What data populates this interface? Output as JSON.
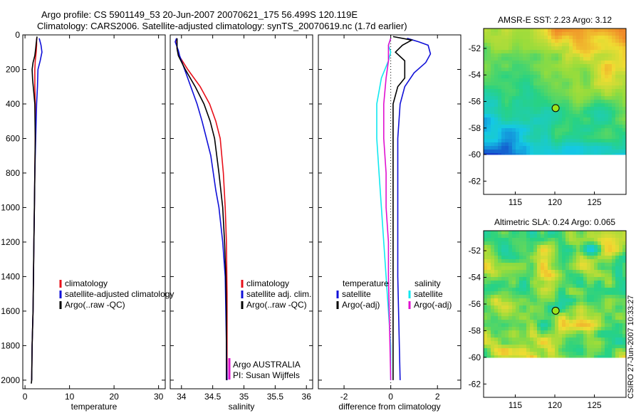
{
  "header": {
    "line1": "Argo profile: CS 5901149_53 20-Jun-2007 20070621_175 56.499S 120.119E",
    "line2": "Climatology: CARS2006. Satellite-adjusted climatology: synTS_20070619.nc (1.7d earlier)"
  },
  "side_stamp": "CSIRO 27-Jun-2007 10:33:27",
  "colors": {
    "red": "#e8101a",
    "blue": "#1010d8",
    "black": "#000000",
    "cyan": "#10e8f0",
    "magenta": "#e010d0",
    "dot": "#9be31c"
  },
  "chart_data": [
    {
      "id": "temperature",
      "type": "line",
      "xlabel": "temperature",
      "ylabel": "",
      "xlim": [
        -0.5,
        31.5
      ],
      "ylim": [
        2050,
        0
      ],
      "xticks": [
        0,
        10,
        20,
        30
      ],
      "yticks": [
        0,
        200,
        400,
        600,
        800,
        1000,
        1200,
        1400,
        1600,
        1800,
        2000
      ],
      "legend": [
        "climatology",
        "satellite-adjusted climatology",
        "Argo(..raw -QC)"
      ],
      "series": [
        {
          "name": "climatology",
          "color": "red",
          "points": [
            [
              2.6,
              20
            ],
            [
              2.6,
              60
            ],
            [
              2.5,
              100
            ],
            [
              2.3,
              150
            ],
            [
              2.2,
              200
            ],
            [
              2.2,
              300
            ],
            [
              2.3,
              400
            ],
            [
              2.3,
              600
            ],
            [
              2.2,
              800
            ],
            [
              2.1,
              1000
            ],
            [
              2.0,
              1200
            ],
            [
              1.9,
              1400
            ],
            [
              1.8,
              1600
            ],
            [
              1.6,
              1800
            ],
            [
              1.5,
              2000
            ]
          ]
        },
        {
          "name": "satellite-adjusted climatology",
          "color": "blue",
          "points": [
            [
              3.2,
              20
            ],
            [
              3.6,
              60
            ],
            [
              3.8,
              100
            ],
            [
              3.4,
              150
            ],
            [
              2.9,
              200
            ],
            [
              2.8,
              300
            ],
            [
              2.6,
              400
            ],
            [
              2.4,
              600
            ],
            [
              2.2,
              800
            ],
            [
              2.1,
              1000
            ],
            [
              2.0,
              1200
            ],
            [
              1.9,
              1400
            ],
            [
              1.8,
              1600
            ],
            [
              1.6,
              1800
            ],
            [
              1.5,
              2000
            ]
          ]
        },
        {
          "name": "Argo(..raw -QC)",
          "color": "black",
          "points": [
            [
              2.7,
              10
            ],
            [
              2.5,
              50
            ],
            [
              2.4,
              80
            ],
            [
              2.2,
              120
            ],
            [
              1.8,
              160
            ],
            [
              1.6,
              200
            ],
            [
              1.7,
              260
            ],
            [
              2.0,
              340
            ],
            [
              2.2,
              400
            ],
            [
              2.3,
              600
            ],
            [
              2.2,
              800
            ],
            [
              2.1,
              1000
            ],
            [
              2.0,
              1200
            ],
            [
              1.9,
              1400
            ],
            [
              1.8,
              1600
            ],
            [
              1.6,
              1800
            ],
            [
              1.5,
              2000
            ],
            [
              1.4,
              2020
            ]
          ]
        }
      ]
    },
    {
      "id": "salinity",
      "type": "line",
      "xlabel": "salinity",
      "ylabel": "",
      "xlim": [
        33.82,
        36.1
      ],
      "ylim": [
        2050,
        0
      ],
      "xticks": [
        34,
        34.5,
        35,
        35.5,
        36
      ],
      "legend": [
        "climatology",
        "satellite adj. clim.",
        "Argo(..raw -QC)"
      ],
      "annotation": [
        "Argo AUSTRALIA",
        "PI: Susan Wijffels"
      ],
      "series": [
        {
          "name": "climatology",
          "color": "red",
          "points": [
            [
              33.92,
              20
            ],
            [
              33.93,
              80
            ],
            [
              33.96,
              120
            ],
            [
              34.1,
              200
            ],
            [
              34.3,
              300
            ],
            [
              34.45,
              400
            ],
            [
              34.55,
              500
            ],
            [
              34.62,
              600
            ],
            [
              34.67,
              800
            ],
            [
              34.7,
              1000
            ],
            [
              34.72,
              1200
            ],
            [
              34.73,
              1500
            ],
            [
              34.73,
              2000
            ]
          ]
        },
        {
          "name": "satellite adj. clim.",
          "color": "blue",
          "points": [
            [
              33.92,
              20
            ],
            [
              33.9,
              40
            ],
            [
              33.95,
              90
            ],
            [
              33.97,
              120
            ],
            [
              34.05,
              200
            ],
            [
              34.15,
              300
            ],
            [
              34.25,
              400
            ],
            [
              34.33,
              500
            ],
            [
              34.4,
              600
            ],
            [
              34.47,
              700
            ],
            [
              34.55,
              900
            ],
            [
              34.6,
              1000
            ],
            [
              34.66,
              1200
            ],
            [
              34.7,
              1400
            ],
            [
              34.73,
              2000
            ]
          ]
        },
        {
          "name": "Argo(..raw -QC)",
          "color": "black",
          "points": [
            [
              33.93,
              20
            ],
            [
              33.93,
              80
            ],
            [
              33.95,
              120
            ],
            [
              34.06,
              200
            ],
            [
              34.22,
              300
            ],
            [
              34.36,
              400
            ],
            [
              34.46,
              500
            ],
            [
              34.53,
              600
            ],
            [
              34.6,
              800
            ],
            [
              34.66,
              1000
            ],
            [
              34.69,
              1200
            ],
            [
              34.71,
              1400
            ],
            [
              34.72,
              1600
            ],
            [
              34.72,
              1800
            ],
            [
              34.72,
              2000
            ]
          ]
        }
      ]
    },
    {
      "id": "difference",
      "type": "line",
      "xlabel": "difference from climatology",
      "ylabel": "",
      "xlim": [
        -3.1,
        3.0
      ],
      "ylim": [
        2050,
        0
      ],
      "xticks": [
        -2,
        0,
        2
      ],
      "legend_groups": [
        {
          "title": "temperature",
          "items": [
            "satellite",
            "Argo(-adj)"
          ]
        },
        {
          "title": "salinity",
          "items": [
            "satellite",
            "Argo(-adj)"
          ]
        }
      ],
      "series": [
        {
          "name": "satellite",
          "group": "temperature",
          "color": "blue",
          "points": [
            [
              0.7,
              20
            ],
            [
              1.2,
              40
            ],
            [
              1.6,
              60
            ],
            [
              1.7,
              110
            ],
            [
              1.5,
              160
            ],
            [
              1.0,
              220
            ],
            [
              0.6,
              300
            ],
            [
              0.4,
              400
            ],
            [
              0.3,
              600
            ],
            [
              0.3,
              800
            ],
            [
              0.3,
              1000
            ],
            [
              0.3,
              1200
            ],
            [
              0.3,
              1400
            ],
            [
              0.4,
              2000
            ]
          ]
        },
        {
          "name": "Argo(-adj)",
          "group": "temperature",
          "color": "black",
          "points": [
            [
              0.1,
              10
            ],
            [
              0.9,
              30
            ],
            [
              0.5,
              60
            ],
            [
              0.2,
              100
            ],
            [
              0.6,
              150
            ],
            [
              0.6,
              250
            ],
            [
              0.3,
              300
            ],
            [
              0.1,
              400
            ],
            [
              0.1,
              600
            ],
            [
              0.1,
              800
            ],
            [
              0.1,
              1000
            ],
            [
              0.1,
              1200
            ],
            [
              0.1,
              1400
            ],
            [
              0.1,
              1600
            ],
            [
              0.1,
              1800
            ],
            [
              0.1,
              2000
            ]
          ]
        },
        {
          "name": "satellite",
          "group": "salinity",
          "color": "cyan",
          "points": [
            [
              0.0,
              20
            ],
            [
              -0.1,
              60
            ],
            [
              0.0,
              100
            ],
            [
              -0.1,
              150
            ],
            [
              -0.4,
              250
            ],
            [
              -0.6,
              400
            ],
            [
              -0.6,
              600
            ],
            [
              -0.5,
              800
            ],
            [
              -0.4,
              1000
            ],
            [
              -0.3,
              1200
            ],
            [
              -0.2,
              1400
            ],
            [
              -0.1,
              1600
            ],
            [
              0.0,
              1800
            ],
            [
              0.0,
              2000
            ]
          ]
        },
        {
          "name": "Argo(-adj)",
          "group": "salinity",
          "color": "magenta",
          "points": [
            [
              0.0,
              20
            ],
            [
              -0.1,
              60
            ],
            [
              -0.1,
              100
            ],
            [
              -0.1,
              150
            ],
            [
              -0.2,
              250
            ],
            [
              -0.3,
              400
            ],
            [
              -0.3,
              600
            ],
            [
              -0.2,
              800
            ],
            [
              -0.2,
              1000
            ],
            [
              -0.1,
              1200
            ],
            [
              -0.1,
              1400
            ],
            [
              0.0,
              2000
            ]
          ]
        }
      ]
    },
    {
      "id": "sst_map",
      "type": "heatmap",
      "title": "AMSR-E SST: 2.23 Argo: 3.12",
      "xticks": [
        115,
        120,
        125
      ],
      "yticks": [
        -52,
        -54,
        -56,
        -58,
        -60,
        -62
      ],
      "xlim": [
        111,
        129
      ],
      "ylim": [
        -63,
        -50.5
      ],
      "data_ylim": [
        -60,
        -50.5
      ],
      "marker": {
        "x": 120.1,
        "y": -56.5
      }
    },
    {
      "id": "sla_map",
      "type": "heatmap",
      "title": "Altimetric SLA: 0.24 Argo: 0.065",
      "xticks": [
        115,
        120,
        125
      ],
      "yticks": [
        -52,
        -54,
        -56,
        -58,
        -60,
        -62
      ],
      "xlim": [
        111,
        129
      ],
      "ylim": [
        -63,
        -50.5
      ],
      "data_ylim": [
        -60,
        -50.5
      ],
      "marker": {
        "x": 120.1,
        "y": -56.5
      }
    }
  ]
}
